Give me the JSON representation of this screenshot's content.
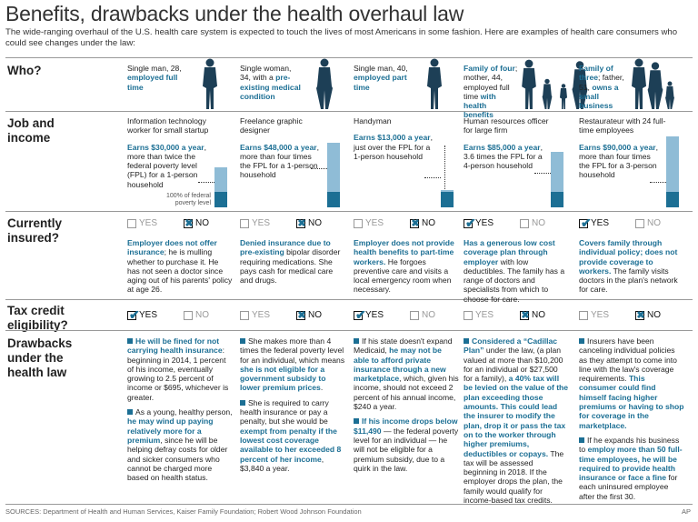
{
  "title": "Benefits, drawbacks under the health overhaul law",
  "subtitle": "The wide-ranging overhaul of the U.S. health care system is expected to touch the lives of most Americans in some fashion. Here are examples of health care consumers who could see changes under the law:",
  "row_labels": {
    "who": "Who?",
    "job": "Job and income",
    "insured": "Currently insured?",
    "tax": "Tax credit eligibility?",
    "drawbacks": "Drawbacks under the health law"
  },
  "yes_label": "YES",
  "no_label": "NO",
  "fpl_note": "100% of federal poverty level",
  "people": [
    {
      "who_plain": "Single man, 28, ",
      "who_hl": "employed full time",
      "who_after": "",
      "job": "Information technology worker for small startup",
      "earn_hl": "Earns $30,000 a year",
      "earn_rest": ", more than twice the federal poverty level (FPL) for a 1-person household",
      "fpl_multiple": 2.6,
      "insured": "no",
      "ins_hl": "Employer does not offer insurance",
      "ins_rest": "; he is mulling whether to purchase it. He has not seen a doctor since aging out of his parents' policy at age 26.",
      "tax": "yes",
      "d1_hl": "He will be fined for not carrying health insurance",
      "d1_rest": ": beginning in 2014, 1 percent of his income, eventually growing to 2.5 percent of income or $695, whichever is greater.",
      "d2_pre": "As a young, healthy person, ",
      "d2_hl": "he may wind up paying relatively more for a premium",
      "d2_rest": ", since he will be helping defray costs for older and sicker consumers who cannot be charged more based on health status."
    },
    {
      "who_plain": "Single woman, 34, with a ",
      "who_hl": "pre-existing medical condition",
      "who_after": "",
      "job": "Freelance graphic designer",
      "earn_hl": "Earns $48,000 a year",
      "earn_rest": ", more than four times the FPL for a 1-person household",
      "fpl_multiple": 4.2,
      "insured": "no",
      "ins_hl": "Denied insurance due to pre-existing",
      "ins_rest": " bipolar disorder requiring medications. She pays cash for medical care and drugs.",
      "tax": "no",
      "d1_pre": "She makes more than 4 times the federal poverty level for an individual, which means ",
      "d1_hl": "she is not eligible for a government subsidy to lower premium prices",
      "d1_rest": ".",
      "d2_pre": "She is required to carry health insurance or pay a penalty, but she would be ",
      "d2_hl": "exempt from penalty if the lowest cost coverage available to her exceeded 8 percent of her income",
      "d2_rest": ", $3,840 a year."
    },
    {
      "who_plain": "Single man, 40, ",
      "who_hl": "employed part time",
      "who_after": "",
      "job": "Handyman",
      "earn_hl": "Earns $13,000 a year",
      "earn_rest": ", just over the FPL for a 1-person household",
      "fpl_multiple": 1.1,
      "insured": "no",
      "ins_hl": "Employer does not provide health benefits to part-time workers.",
      "ins_rest": " He forgoes preventive care and visits a local emergency room when necessary.",
      "tax": "yes",
      "d1_pre": "If his state doesn't expand Medicaid, ",
      "d1_hl": "he may not be able to afford private insurance through a new marketplace",
      "d1_rest": ", which, given his income, should not exceed 2 percent of his annual income, $240 a year.",
      "d2_pre": "",
      "d2_hl": "If his income drops below $11,490",
      "d2_rest": " — the federal poverty level for an individual — he will not be eligible for a premium subsidy, due to a quirk in the law."
    },
    {
      "who_plain": "",
      "who_hl": "Family of four",
      "who_after": "; mother, 44, employed full time ",
      "who_hl2": "with health benefits",
      "job": "Human resources officer for large firm",
      "earn_hl": "Earns $85,000 a year",
      "earn_rest": ", 3.6 times the FPL for a 4-person household",
      "fpl_multiple": 3.6,
      "insured": "yes",
      "ins_hl": "Has a generous low cost coverage plan through employer",
      "ins_rest": " with low deductibles. The family has a range of doctors and specialists from which to choose for care.",
      "tax": "no",
      "d1_pre": "",
      "d1_hl": "Considered a “Cadillac Plan”",
      "d1_mid": " under the law, (a plan valued at more than $10,200 for an individual or $27,500 for a family), ",
      "d1_hl2": "a 40% tax will be levied on the value of the plan exceeding those amounts. This could lead the insurer to modify the plan, drop it or pass the tax on to the worker through higher premiums, deductibles or copays.",
      "d1_rest": " The tax will be assessed beginning in 2018. If the employer drops the plan, the family would qualify for income-based tax credits.",
      "d2_pre": "",
      "d2_hl": "",
      "d2_rest": ""
    },
    {
      "who_plain": "",
      "who_hl": "Family of three",
      "who_after": "; father, 51, ",
      "who_hl2": "owns a small business",
      "job": "Restaurateur with 24 full-time employees",
      "earn_hl": "Earns $90,000 a year",
      "earn_rest": ", more than four times the FPL for a 3-person household",
      "fpl_multiple": 4.6,
      "insured": "yes",
      "ins_hl": "Covers family through individual policy; does not provide coverage to workers.",
      "ins_rest": " The family visits doctors in the plan's network for care.",
      "tax": "no",
      "d1_pre": "Insurers have been canceling individual policies as they attempt to come into line with the law's coverage requirements. ",
      "d1_hl": "This consumer could find himself facing higher premiums or having to shop for coverage in the marketplace.",
      "d1_rest": "",
      "d2_pre": "If he expands his business to ",
      "d2_hl": "employ more than 50 full-time employees, he will be required to provide health insurance or face a fine",
      "d2_rest": " for each uninsured employee after the first 30."
    }
  ],
  "footer": "SOURCES: Department of Health and Human Services, Kaiser Family Foundation; Robert Wood Johnson Foundation",
  "credit": "AP",
  "colors": {
    "accent": "#1c6f94",
    "bar_light": "#8fbcd6"
  }
}
